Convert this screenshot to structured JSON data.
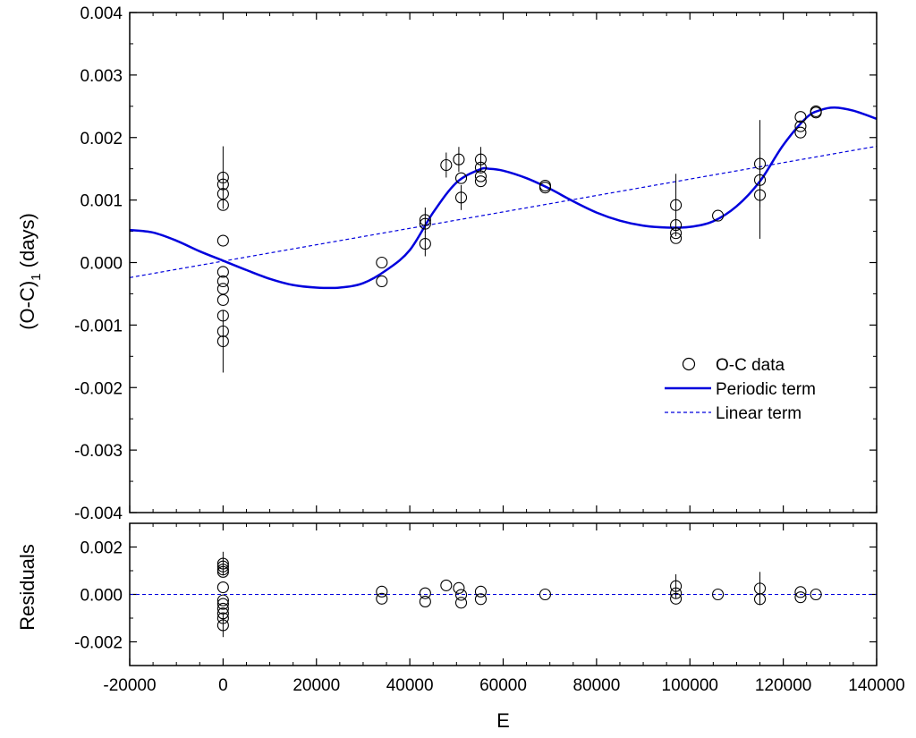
{
  "colors": {
    "fit": "#0000dd",
    "axis": "#000000",
    "marker": "#000000"
  },
  "chart_data": [
    {
      "type": "scatter",
      "panel": "main",
      "title": "",
      "xlabel": "",
      "ylabel": "(O-C)",
      "ylabel_subscript": "1",
      "ylabel_unit": " (days)",
      "xlim": [
        -20000,
        140000
      ],
      "ylim": [
        -0.004,
        0.004
      ],
      "xticks": [
        -20000,
        0,
        20000,
        40000,
        60000,
        80000,
        100000,
        120000,
        140000
      ],
      "yticks": [
        -0.004,
        -0.003,
        -0.002,
        -0.001,
        0.0,
        0.001,
        0.002,
        0.003,
        0.004
      ],
      "ytick_labels": [
        "-0.004",
        "-0.003",
        "-0.002",
        "-0.001",
        "0.000",
        "0.001",
        "0.002",
        "0.003",
        "0.004"
      ],
      "grid": false,
      "legend_position": "lower-right",
      "legend": [
        "O-C data",
        "Periodic term",
        "Linear term"
      ],
      "series": [
        {
          "name": "O-C data",
          "kind": "markers",
          "points": [
            {
              "x": 0,
              "y": 0.00136,
              "err": 0.0005
            },
            {
              "x": 0,
              "y": 0.00125
            },
            {
              "x": 0,
              "y": 0.0011
            },
            {
              "x": 0,
              "y": 0.00092
            },
            {
              "x": 0,
              "y": 0.00035
            },
            {
              "x": 0,
              "y": -0.00015
            },
            {
              "x": 0,
              "y": -0.0003
            },
            {
              "x": 0,
              "y": -0.00042
            },
            {
              "x": 0,
              "y": -0.0006
            },
            {
              "x": 0,
              "y": -0.00085
            },
            {
              "x": 0,
              "y": -0.0011
            },
            {
              "x": 0,
              "y": -0.00126,
              "err": 0.0005
            },
            {
              "x": 34000,
              "y": 0.0
            },
            {
              "x": 34000,
              "y": -0.0003
            },
            {
              "x": 43300,
              "y": 0.00068,
              "err": 0.0002
            },
            {
              "x": 43300,
              "y": 0.00062
            },
            {
              "x": 43300,
              "y": 0.0003,
              "err": 0.0002
            },
            {
              "x": 47800,
              "y": 0.00156,
              "err": 0.0002
            },
            {
              "x": 50500,
              "y": 0.00165,
              "err": 0.0002
            },
            {
              "x": 51000,
              "y": 0.00135
            },
            {
              "x": 51000,
              "y": 0.00104,
              "err": 0.0002
            },
            {
              "x": 55200,
              "y": 0.00165,
              "err": 0.0002
            },
            {
              "x": 55200,
              "y": 0.00152
            },
            {
              "x": 55200,
              "y": 0.00138
            },
            {
              "x": 55200,
              "y": 0.0013
            },
            {
              "x": 69000,
              "y": 0.00123
            },
            {
              "x": 69000,
              "y": 0.0012
            },
            {
              "x": 97000,
              "y": 0.00092,
              "err": 0.0005
            },
            {
              "x": 97000,
              "y": 0.0006
            },
            {
              "x": 97000,
              "y": 0.00047
            },
            {
              "x": 97000,
              "y": 0.00039
            },
            {
              "x": 106000,
              "y": 0.00075
            },
            {
              "x": 115000,
              "y": 0.00158,
              "err": 0.0007
            },
            {
              "x": 115000,
              "y": 0.00132
            },
            {
              "x": 115000,
              "y": 0.00108,
              "err": 0.0007
            },
            {
              "x": 123700,
              "y": 0.00233
            },
            {
              "x": 123700,
              "y": 0.00218
            },
            {
              "x": 123700,
              "y": 0.00208
            },
            {
              "x": 127000,
              "y": 0.00242
            },
            {
              "x": 127000,
              "y": 0.0024
            }
          ]
        },
        {
          "name": "Periodic term",
          "kind": "solid-line",
          "points": [
            {
              "x": -20000,
              "y": 0.00052
            },
            {
              "x": -15000,
              "y": 0.00048
            },
            {
              "x": -10000,
              "y": 0.00035
            },
            {
              "x": -5000,
              "y": 0.00018
            },
            {
              "x": 0,
              "y": 3e-05
            },
            {
              "x": 5000,
              "y": -0.00012
            },
            {
              "x": 10000,
              "y": -0.00026
            },
            {
              "x": 15000,
              "y": -0.00036
            },
            {
              "x": 20000,
              "y": -0.0004
            },
            {
              "x": 25000,
              "y": -0.0004
            },
            {
              "x": 30000,
              "y": -0.00033
            },
            {
              "x": 35000,
              "y": -0.00012
            },
            {
              "x": 40000,
              "y": 0.0002
            },
            {
              "x": 45000,
              "y": 0.0008
            },
            {
              "x": 50000,
              "y": 0.00128
            },
            {
              "x": 55000,
              "y": 0.00149
            },
            {
              "x": 57000,
              "y": 0.0015
            },
            {
              "x": 60000,
              "y": 0.00147
            },
            {
              "x": 65000,
              "y": 0.00135
            },
            {
              "x": 70000,
              "y": 0.00118
            },
            {
              "x": 75000,
              "y": 0.00098
            },
            {
              "x": 80000,
              "y": 0.0008
            },
            {
              "x": 85000,
              "y": 0.00067
            },
            {
              "x": 90000,
              "y": 0.00059
            },
            {
              "x": 95000,
              "y": 0.00056
            },
            {
              "x": 100000,
              "y": 0.00057
            },
            {
              "x": 105000,
              "y": 0.00066
            },
            {
              "x": 110000,
              "y": 0.0009
            },
            {
              "x": 115000,
              "y": 0.0013
            },
            {
              "x": 120000,
              "y": 0.00188
            },
            {
              "x": 125000,
              "y": 0.00232
            },
            {
              "x": 128000,
              "y": 0.00244
            },
            {
              "x": 131000,
              "y": 0.00248
            },
            {
              "x": 135000,
              "y": 0.00243
            },
            {
              "x": 140000,
              "y": 0.0023
            }
          ]
        },
        {
          "name": "Linear term",
          "kind": "dashed-line",
          "points": [
            {
              "x": -20000,
              "y": -0.00024
            },
            {
              "x": 140000,
              "y": 0.00186
            }
          ]
        }
      ]
    },
    {
      "type": "scatter",
      "panel": "residuals",
      "title": "",
      "xlabel": "E",
      "ylabel": "Residuals",
      "xlim": [
        -20000,
        140000
      ],
      "ylim": [
        -0.003,
        0.003
      ],
      "xticks": [
        -20000,
        0,
        20000,
        40000,
        60000,
        80000,
        100000,
        120000,
        140000
      ],
      "xtick_labels": [
        "-20000",
        "0",
        "20000",
        "40000",
        "60000",
        "80000",
        "100000",
        "120000",
        "140000"
      ],
      "yticks": [
        -0.002,
        0.0,
        0.002
      ],
      "ytick_labels": [
        "-0.002",
        "0.000",
        "0.002"
      ],
      "grid": false,
      "zero_line": 0.0,
      "series": [
        {
          "name": "Residuals",
          "kind": "markers",
          "points": [
            {
              "x": 0,
              "y": 0.0013,
              "err": 0.0005
            },
            {
              "x": 0,
              "y": 0.00118
            },
            {
              "x": 0,
              "y": 0.00105
            },
            {
              "x": 0,
              "y": 0.00095
            },
            {
              "x": 0,
              "y": 0.0003
            },
            {
              "x": 0,
              "y": -0.00025
            },
            {
              "x": 0,
              "y": -0.0004
            },
            {
              "x": 0,
              "y": -0.0006
            },
            {
              "x": 0,
              "y": -0.0008
            },
            {
              "x": 0,
              "y": -0.001
            },
            {
              "x": 0,
              "y": -0.0013,
              "err": 0.0005
            },
            {
              "x": 34000,
              "y": 0.00012
            },
            {
              "x": 34000,
              "y": -0.00018
            },
            {
              "x": 43300,
              "y": 5e-05
            },
            {
              "x": 43300,
              "y": -0.0003
            },
            {
              "x": 47800,
              "y": 0.00038
            },
            {
              "x": 50500,
              "y": 0.00027
            },
            {
              "x": 51000,
              "y": -2e-05
            },
            {
              "x": 51000,
              "y": -0.00035
            },
            {
              "x": 55200,
              "y": 0.00012
            },
            {
              "x": 55200,
              "y": -0.0002
            },
            {
              "x": 69000,
              "y": 0.0
            },
            {
              "x": 97000,
              "y": 0.00035,
              "err": 0.0005
            },
            {
              "x": 97000,
              "y": 5e-05
            },
            {
              "x": 97000,
              "y": -0.00018
            },
            {
              "x": 106000,
              "y": 0.0
            },
            {
              "x": 115000,
              "y": 0.00025,
              "err": 0.0007
            },
            {
              "x": 115000,
              "y": -0.0002
            },
            {
              "x": 123700,
              "y": 0.0001
            },
            {
              "x": 123700,
              "y": -0.00012
            },
            {
              "x": 127000,
              "y": 0.0
            }
          ]
        }
      ]
    }
  ]
}
